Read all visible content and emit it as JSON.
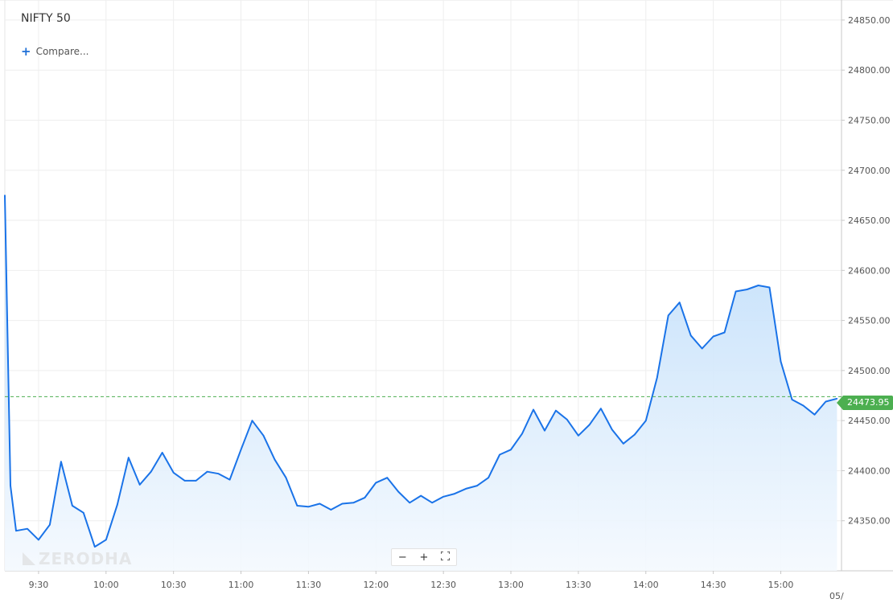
{
  "header": {
    "title": "NIFTY 50",
    "compare_label": "Compare..."
  },
  "watermark": "ZERODHA",
  "zoom": {
    "minus": "−",
    "plus": "+",
    "fit_icon": "expand-icon"
  },
  "price_tag": {
    "value": "24473.95",
    "color": "#4caf50"
  },
  "colors": {
    "line": "#1a73e8",
    "area_top": "#bcdcfa",
    "area_bottom": "#f4f9fe",
    "grid": "#eeeeee",
    "ref_line": "#4caf50"
  },
  "chart_data": {
    "type": "area",
    "title": "NIFTY 50",
    "xlabel": "",
    "ylabel": "",
    "ylim": [
      24300,
      24870
    ],
    "yticks": [
      24350,
      24400,
      24450,
      24500,
      24550,
      24600,
      24650,
      24700,
      24750,
      24800,
      24850
    ],
    "ytick_labels": [
      "24350.00",
      "24400.00",
      "24450.00",
      "24500.00",
      "24550.00",
      "24600.00",
      "24650.00",
      "24700.00",
      "24750.00",
      "24800.00",
      "24850.00"
    ],
    "xticks": [
      "9:30",
      "10:00",
      "10:30",
      "11:00",
      "11:30",
      "12:00",
      "12:30",
      "13:00",
      "13:30",
      "14:00",
      "14:30",
      "15:00"
    ],
    "xtick_minutes": [
      570,
      600,
      630,
      660,
      690,
      720,
      750,
      780,
      810,
      840,
      870,
      900
    ],
    "x_trailing_label": "05/",
    "xlim": [
      555,
      927
    ],
    "reference_value": 24473.95,
    "grid": true,
    "series": [
      {
        "x": [
          555,
          557.5,
          560,
          565,
          570,
          575,
          580,
          585,
          590,
          595,
          600,
          605,
          610,
          615,
          620,
          625,
          630,
          635,
          640,
          645,
          650,
          655,
          660,
          665,
          670,
          675,
          680,
          685,
          690,
          695,
          700,
          705,
          710,
          715,
          720,
          725,
          730,
          735,
          740,
          745,
          750,
          755,
          760,
          765,
          770,
          775,
          780,
          785,
          790,
          795,
          800,
          805,
          810,
          815,
          820,
          825,
          830,
          835,
          840,
          845,
          850,
          855,
          860,
          865,
          870,
          875,
          880,
          885,
          890,
          895,
          900,
          905,
          910,
          915,
          920,
          925
        ],
        "y": [
          24675,
          24385,
          24340,
          24342,
          24331,
          24346,
          24409,
          24365,
          24358,
          24324,
          24331,
          24366,
          24413,
          24386,
          24399,
          24418,
          24398,
          24390,
          24390,
          24399,
          24397,
          24391,
          24421,
          24450,
          24435,
          24411,
          24393,
          24365,
          24364,
          24367,
          24361,
          24367,
          24368,
          24373,
          24388,
          24393,
          24379,
          24368,
          24375,
          24368,
          24374,
          24377,
          24382,
          24385,
          24393,
          24416,
          24421,
          24437,
          24461,
          24440,
          24460,
          24451,
          24435,
          24446,
          24462,
          24441,
          24427,
          24436,
          24450,
          24493,
          24555,
          24568,
          24535,
          24522,
          24534,
          24538,
          24579,
          24581,
          24585,
          24583,
          24509,
          24471,
          24465,
          24456,
          24469,
          24472
        ]
      }
    ]
  }
}
